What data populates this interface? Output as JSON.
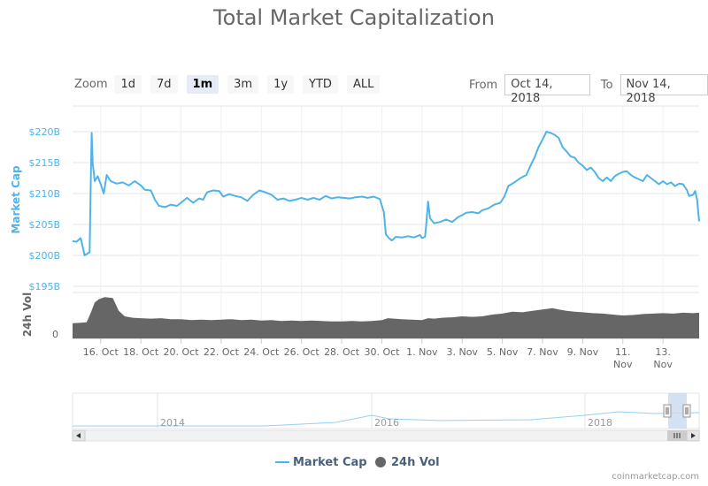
{
  "title": "Total Market Capitalization",
  "zoom": {
    "label": "Zoom",
    "buttons": [
      "1d",
      "7d",
      "1m",
      "3m",
      "1y",
      "YTD",
      "ALL"
    ],
    "active": "1m"
  },
  "range": {
    "from_label": "From",
    "from_value": "Oct 14, 2018",
    "to_label": "To",
    "to_value": "Nov 14, 2018"
  },
  "credit": "coinmarketcap.com",
  "colors": {
    "market_cap": "#4fb3e8",
    "volume": "#666666",
    "axis_label_cap": "#4fb3e8"
  },
  "chart_data": {
    "type": "line",
    "title": "Total Market Capitalization",
    "ylabel": "Market Cap",
    "ylabel_secondary": "24h Vol",
    "y_ticks": [
      "$195B",
      "$200B",
      "$205B",
      "$210B",
      "$215B",
      "$220B"
    ],
    "ylim": [
      195,
      220
    ],
    "vol_ticks": [
      "0"
    ],
    "x_ticks": [
      {
        "day": 16,
        "label": "16. Oct"
      },
      {
        "day": 18,
        "label": "18. Oct"
      },
      {
        "day": 20,
        "label": "20. Oct"
      },
      {
        "day": 22,
        "label": "22. Oct"
      },
      {
        "day": 24,
        "label": "24. Oct"
      },
      {
        "day": 26,
        "label": "26. Oct"
      },
      {
        "day": 28,
        "label": "28. Oct"
      },
      {
        "day": 30,
        "label": "30. Oct"
      },
      {
        "day": 32,
        "label": "1. Nov"
      },
      {
        "day": 34,
        "label": "3. Nov"
      },
      {
        "day": 36,
        "label": "5. Nov"
      },
      {
        "day": 38,
        "label": "7. Nov"
      },
      {
        "day": 40,
        "label": "9. Nov"
      },
      {
        "day": 42,
        "label": "11. Nov"
      },
      {
        "day": 44,
        "label": "13. Nov"
      }
    ],
    "xlim": [
      14.6,
      45.8
    ],
    "series": [
      {
        "name": "Market Cap",
        "unit": "USD billions",
        "points": [
          [
            14.6,
            202.3
          ],
          [
            14.8,
            202.2
          ],
          [
            15.0,
            202.8
          ],
          [
            15.1,
            201.5
          ],
          [
            15.2,
            200.0
          ],
          [
            15.35,
            200.3
          ],
          [
            15.45,
            200.5
          ],
          [
            15.5,
            210.5
          ],
          [
            15.55,
            219.8
          ],
          [
            15.6,
            215.0
          ],
          [
            15.7,
            212.0
          ],
          [
            15.85,
            212.8
          ],
          [
            16.0,
            211.5
          ],
          [
            16.15,
            210.0
          ],
          [
            16.3,
            213.0
          ],
          [
            16.5,
            212.0
          ],
          [
            16.8,
            211.6
          ],
          [
            17.1,
            211.8
          ],
          [
            17.4,
            211.3
          ],
          [
            17.7,
            212.0
          ],
          [
            18.0,
            211.3
          ],
          [
            18.2,
            210.6
          ],
          [
            18.5,
            210.5
          ],
          [
            18.7,
            209.0
          ],
          [
            18.9,
            208.0
          ],
          [
            19.2,
            207.8
          ],
          [
            19.5,
            208.2
          ],
          [
            19.8,
            208.0
          ],
          [
            20.0,
            208.5
          ],
          [
            20.3,
            209.3
          ],
          [
            20.6,
            208.5
          ],
          [
            20.9,
            209.2
          ],
          [
            21.1,
            209.0
          ],
          [
            21.3,
            210.2
          ],
          [
            21.6,
            210.5
          ],
          [
            21.9,
            210.4
          ],
          [
            22.1,
            209.5
          ],
          [
            22.4,
            209.9
          ],
          [
            22.7,
            209.6
          ],
          [
            23.0,
            209.4
          ],
          [
            23.3,
            208.8
          ],
          [
            23.6,
            209.8
          ],
          [
            23.9,
            210.5
          ],
          [
            24.2,
            210.2
          ],
          [
            24.5,
            209.8
          ],
          [
            24.8,
            209.0
          ],
          [
            25.1,
            209.2
          ],
          [
            25.4,
            208.8
          ],
          [
            25.7,
            209.0
          ],
          [
            26.0,
            209.3
          ],
          [
            26.3,
            209.0
          ],
          [
            26.6,
            209.3
          ],
          [
            26.9,
            209.0
          ],
          [
            27.2,
            209.6
          ],
          [
            27.5,
            209.2
          ],
          [
            27.8,
            209.4
          ],
          [
            28.1,
            209.3
          ],
          [
            28.4,
            209.2
          ],
          [
            28.7,
            209.4
          ],
          [
            29.0,
            209.5
          ],
          [
            29.3,
            209.3
          ],
          [
            29.6,
            209.5
          ],
          [
            29.9,
            209.1
          ],
          [
            30.1,
            207.0
          ],
          [
            30.2,
            203.4
          ],
          [
            30.35,
            202.8
          ],
          [
            30.5,
            202.4
          ],
          [
            30.7,
            203.0
          ],
          [
            31.0,
            202.9
          ],
          [
            31.3,
            203.1
          ],
          [
            31.6,
            202.9
          ],
          [
            31.9,
            203.3
          ],
          [
            32.0,
            202.8
          ],
          [
            32.15,
            203.0
          ],
          [
            32.2,
            204.6
          ],
          [
            32.3,
            208.7
          ],
          [
            32.4,
            206.0
          ],
          [
            32.6,
            205.2
          ],
          [
            32.9,
            205.4
          ],
          [
            33.2,
            205.8
          ],
          [
            33.5,
            205.4
          ],
          [
            33.8,
            206.2
          ],
          [
            34.0,
            206.5
          ],
          [
            34.2,
            206.9
          ],
          [
            34.5,
            207.0
          ],
          [
            34.8,
            206.8
          ],
          [
            35.0,
            207.3
          ],
          [
            35.3,
            207.6
          ],
          [
            35.6,
            208.2
          ],
          [
            35.9,
            208.5
          ],
          [
            36.1,
            209.5
          ],
          [
            36.3,
            211.2
          ],
          [
            36.6,
            211.8
          ],
          [
            36.9,
            212.5
          ],
          [
            37.2,
            213.0
          ],
          [
            37.4,
            214.5
          ],
          [
            37.6,
            215.8
          ],
          [
            37.8,
            217.5
          ],
          [
            38.0,
            218.7
          ],
          [
            38.2,
            220.0
          ],
          [
            38.4,
            219.8
          ],
          [
            38.6,
            219.5
          ],
          [
            38.8,
            219.0
          ],
          [
            39.0,
            217.5
          ],
          [
            39.2,
            216.8
          ],
          [
            39.4,
            216.0
          ],
          [
            39.6,
            215.8
          ],
          [
            39.8,
            215.0
          ],
          [
            40.0,
            214.5
          ],
          [
            40.2,
            213.8
          ],
          [
            40.4,
            214.2
          ],
          [
            40.6,
            213.5
          ],
          [
            40.8,
            212.5
          ],
          [
            41.0,
            212.0
          ],
          [
            41.2,
            212.6
          ],
          [
            41.4,
            212.0
          ],
          [
            41.6,
            212.8
          ],
          [
            41.8,
            213.2
          ],
          [
            42.0,
            213.5
          ],
          [
            42.2,
            213.6
          ],
          [
            42.4,
            213.0
          ],
          [
            42.6,
            212.6
          ],
          [
            42.8,
            212.3
          ],
          [
            43.0,
            212.0
          ],
          [
            43.2,
            213.0
          ],
          [
            43.4,
            212.5
          ],
          [
            43.6,
            212.0
          ],
          [
            43.8,
            211.5
          ],
          [
            44.0,
            212.0
          ],
          [
            44.2,
            211.5
          ],
          [
            44.4,
            211.8
          ],
          [
            44.6,
            211.2
          ],
          [
            44.8,
            211.6
          ],
          [
            45.0,
            211.5
          ],
          [
            45.2,
            210.5
          ],
          [
            45.3,
            209.6
          ],
          [
            45.5,
            209.8
          ],
          [
            45.6,
            210.4
          ],
          [
            45.7,
            209.0
          ],
          [
            45.8,
            205.5
          ]
        ]
      },
      {
        "name": "24h Vol",
        "unit": "relative",
        "points": [
          [
            14.6,
            0.33
          ],
          [
            15.0,
            0.34
          ],
          [
            15.3,
            0.35
          ],
          [
            15.5,
            0.55
          ],
          [
            15.7,
            0.78
          ],
          [
            15.9,
            0.85
          ],
          [
            16.2,
            0.9
          ],
          [
            16.6,
            0.88
          ],
          [
            16.9,
            0.6
          ],
          [
            17.2,
            0.48
          ],
          [
            17.6,
            0.45
          ],
          [
            18.0,
            0.44
          ],
          [
            18.5,
            0.43
          ],
          [
            19.0,
            0.44
          ],
          [
            19.5,
            0.42
          ],
          [
            20.0,
            0.42
          ],
          [
            20.5,
            0.4
          ],
          [
            21.0,
            0.41
          ],
          [
            21.5,
            0.4
          ],
          [
            22.0,
            0.41
          ],
          [
            22.5,
            0.42
          ],
          [
            23.0,
            0.4
          ],
          [
            23.5,
            0.41
          ],
          [
            24.0,
            0.39
          ],
          [
            24.5,
            0.4
          ],
          [
            25.0,
            0.38
          ],
          [
            25.5,
            0.39
          ],
          [
            26.0,
            0.38
          ],
          [
            26.5,
            0.39
          ],
          [
            27.0,
            0.38
          ],
          [
            27.5,
            0.37
          ],
          [
            28.0,
            0.37
          ],
          [
            28.5,
            0.38
          ],
          [
            29.0,
            0.37
          ],
          [
            29.5,
            0.38
          ],
          [
            30.0,
            0.4
          ],
          [
            30.3,
            0.44
          ],
          [
            30.6,
            0.43
          ],
          [
            31.0,
            0.42
          ],
          [
            31.5,
            0.41
          ],
          [
            32.0,
            0.4
          ],
          [
            32.3,
            0.44
          ],
          [
            32.6,
            0.43
          ],
          [
            33.0,
            0.45
          ],
          [
            33.5,
            0.46
          ],
          [
            34.0,
            0.48
          ],
          [
            34.5,
            0.47
          ],
          [
            35.0,
            0.48
          ],
          [
            35.5,
            0.52
          ],
          [
            36.0,
            0.54
          ],
          [
            36.5,
            0.58
          ],
          [
            37.0,
            0.57
          ],
          [
            37.5,
            0.6
          ],
          [
            38.0,
            0.63
          ],
          [
            38.5,
            0.66
          ],
          [
            38.8,
            0.63
          ],
          [
            39.2,
            0.6
          ],
          [
            39.6,
            0.58
          ],
          [
            40.0,
            0.57
          ],
          [
            40.5,
            0.55
          ],
          [
            41.0,
            0.54
          ],
          [
            41.5,
            0.52
          ],
          [
            42.0,
            0.5
          ],
          [
            42.5,
            0.51
          ],
          [
            43.0,
            0.53
          ],
          [
            43.5,
            0.54
          ],
          [
            44.0,
            0.55
          ],
          [
            44.5,
            0.54
          ],
          [
            45.0,
            0.56
          ],
          [
            45.5,
            0.55
          ],
          [
            45.8,
            0.56
          ]
        ]
      }
    ],
    "navigator": {
      "x_ticks": [
        "2014",
        "2016",
        "2018"
      ]
    },
    "legend": {
      "placement": "bottom-center",
      "items": [
        "Market Cap",
        "24h Vol"
      ]
    },
    "grid": true
  }
}
